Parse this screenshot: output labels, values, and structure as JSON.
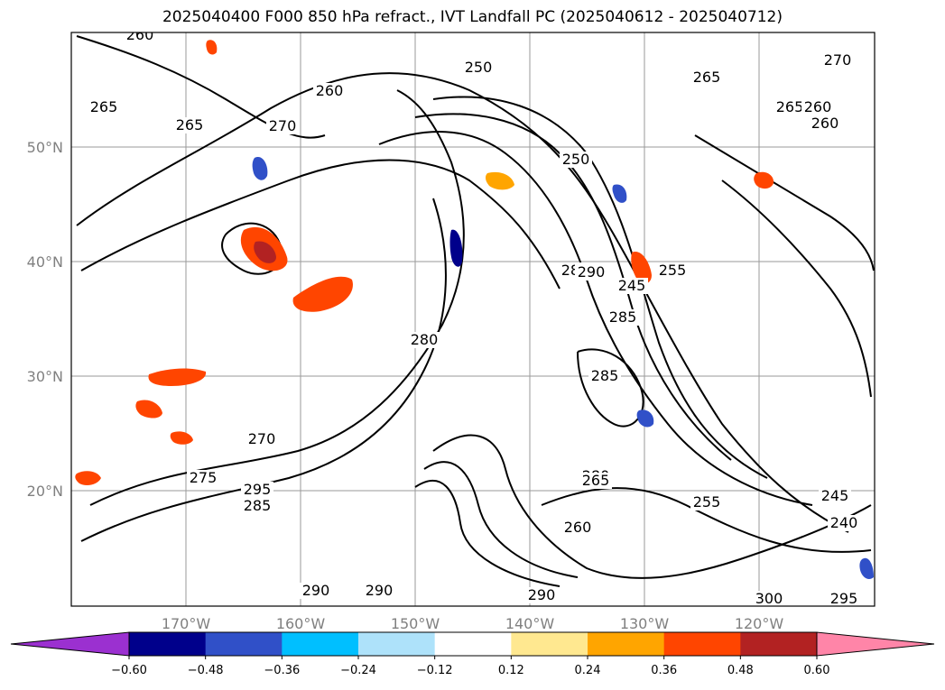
{
  "title": "2025040400 F000 850 hPa refract., IVT Landfall PC (2025040612 - 2025040712)",
  "chart_data": {
    "type": "contour-map",
    "title": "2025040400 F000 850 hPa refract., IVT Landfall PC (2025040612 - 2025040712)",
    "lat_ticks": [
      "50°N",
      "40°N",
      "30°N",
      "20°N"
    ],
    "lon_ticks": [
      "170°W",
      "160°W",
      "150°W",
      "140°W",
      "130°W",
      "120°W"
    ],
    "grid": true,
    "colorbar": {
      "orientation": "horizontal",
      "extend": "both",
      "ticks": [
        "−0.60",
        "−0.48",
        "−0.36",
        "−0.24",
        "−0.12",
        "0.12",
        "0.24",
        "0.36",
        "0.48",
        "0.60"
      ],
      "colors": [
        "#9b30d0",
        "#00008b",
        "#3050c8",
        "#00bfff",
        "#aee2fa",
        "#ffffff",
        "#ffe890",
        "#ffa500",
        "#ff4500",
        "#b22222",
        "#ff85a8"
      ]
    },
    "contour_labels": [
      "260",
      "265",
      "250",
      "260",
      "265",
      "270",
      "265",
      "265",
      "260",
      "260",
      "250",
      "270",
      "280",
      "285",
      "290",
      "245",
      "255",
      "285",
      "280",
      "270",
      "275",
      "285",
      "280",
      "295",
      "265",
      "255",
      "290",
      "290",
      "300",
      "295",
      "240",
      "245",
      "290",
      "260"
    ]
  }
}
